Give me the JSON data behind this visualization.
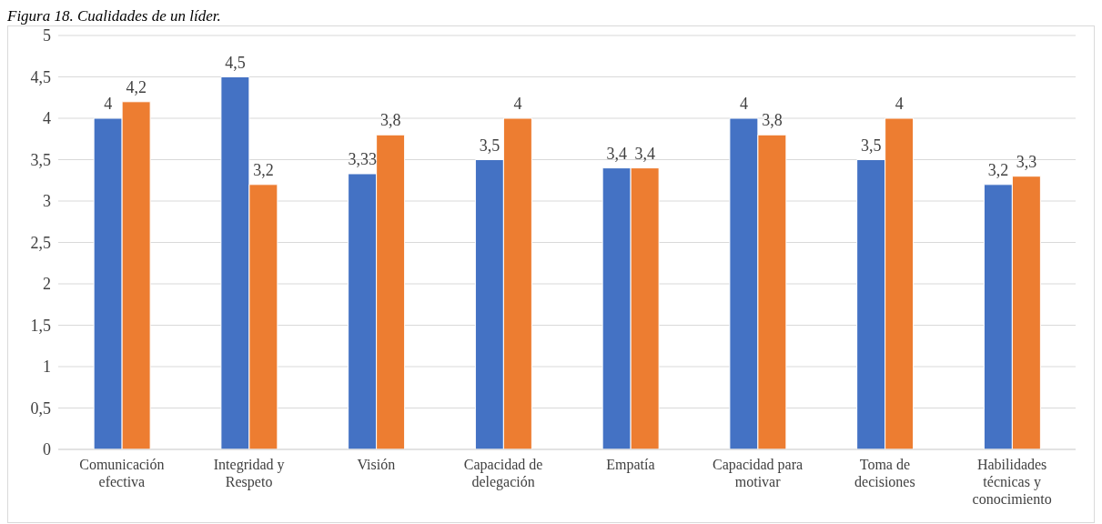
{
  "chart_data": {
    "type": "bar",
    "title": "Figura 18. Cualidades de un líder.",
    "categories": [
      "Comunicación efectiva",
      "Integridad y Respeto",
      "Visión",
      "Capacidad de delegación",
      "Empatía",
      "Capacidad para motivar",
      "Toma de decisiones",
      "Habilidades técnicas y conocimiento"
    ],
    "series": [
      {
        "color": "#4472c4",
        "values": [
          4,
          4.5,
          3.33,
          3.5,
          3.4,
          4,
          3.5,
          3.2
        ],
        "value_labels": [
          "4",
          "4,5",
          "3,33",
          "3,5",
          "3,4",
          "4",
          "3,5",
          "3,2"
        ]
      },
      {
        "color": "#ed7d31",
        "values": [
          4.2,
          3.2,
          3.8,
          4,
          3.4,
          3.8,
          4,
          3.3
        ],
        "value_labels": [
          "4,2",
          "3,2",
          "3,8",
          "4",
          "3,4",
          "3,8",
          "4",
          "3,3"
        ]
      }
    ],
    "ylim": [
      0,
      5
    ],
    "yticks": [
      0,
      {
        "value": 0.5,
        "label": "0,5"
      },
      1,
      {
        "value": 1.5,
        "label": "1,5"
      },
      2,
      {
        "value": 2.5,
        "label": "2,5"
      },
      3,
      {
        "value": 3.5,
        "label": "3,5"
      },
      4,
      {
        "value": 4.5,
        "label": "4,5"
      },
      5
    ],
    "grid": "y",
    "legend": false
  }
}
